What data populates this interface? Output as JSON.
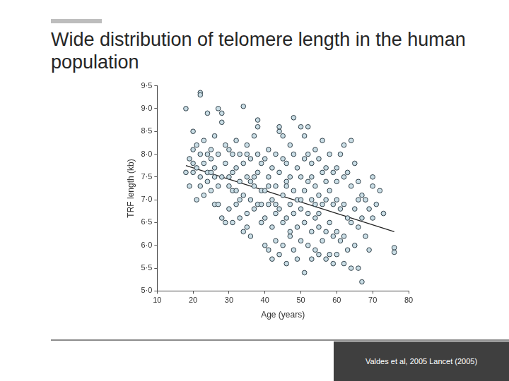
{
  "title": "Wide distribution of telomere length in the human population",
  "citation": "Valdes et al, 2005 Lancet  (2005)",
  "chart_data": {
    "type": "scatter",
    "x_label": "Age (years)",
    "y_label": "TRF length (kb)",
    "xlim": [
      10,
      80
    ],
    "xticks": [
      10,
      20,
      30,
      40,
      50,
      60,
      70,
      80
    ],
    "ylim": [
      5,
      9.5
    ],
    "yticks": [
      {
        "value": 5,
        "label": "5·0"
      },
      {
        "value": 5.5,
        "label": "5·5"
      },
      {
        "value": 6,
        "label": "6·0"
      },
      {
        "value": 6.5,
        "label": "6·5"
      },
      {
        "value": 7,
        "label": "7·0"
      },
      {
        "value": 7.5,
        "label": "7·5"
      },
      {
        "value": 8,
        "label": "8·0"
      },
      {
        "value": 8.5,
        "label": "8·5"
      },
      {
        "value": 9,
        "label": "9·0"
      },
      {
        "value": 9.5,
        "label": "9·5"
      }
    ],
    "grid": false,
    "series": [
      {
        "type": "scatter",
        "marker": "circle",
        "color": "#c9dde5",
        "x": [
          18,
          18,
          19,
          19,
          20,
          20,
          20,
          21,
          21,
          21,
          22,
          22,
          22,
          22,
          23,
          23,
          23,
          24,
          24,
          24,
          25,
          25,
          25,
          26,
          26,
          26,
          27,
          27,
          27,
          28,
          28,
          28,
          28,
          29,
          29,
          29,
          24,
          26,
          20,
          22,
          25,
          27,
          30,
          30,
          30,
          31,
          31,
          31,
          32,
          32,
          32,
          33,
          33,
          33,
          34,
          34,
          34,
          35,
          35,
          35,
          35,
          36,
          36,
          36,
          37,
          37,
          37,
          38,
          38,
          38,
          39,
          39,
          39,
          31,
          33,
          35,
          37,
          39,
          30,
          32,
          34,
          36,
          38,
          38,
          40,
          40,
          40,
          40,
          41,
          41,
          41,
          41,
          42,
          42,
          42,
          42,
          43,
          43,
          43,
          43,
          44,
          44,
          44,
          44,
          45,
          45,
          45,
          45,
          46,
          46,
          46,
          46,
          47,
          47,
          47,
          47,
          48,
          48,
          48,
          48,
          49,
          49,
          49,
          49,
          44,
          45,
          46,
          47,
          41,
          43,
          50,
          50,
          50,
          50,
          51,
          51,
          51,
          51,
          52,
          52,
          52,
          52,
          53,
          53,
          53,
          53,
          54,
          54,
          54,
          54,
          55,
          55,
          55,
          55,
          56,
          56,
          56,
          56,
          57,
          57,
          57,
          57,
          58,
          58,
          58,
          58,
          59,
          59,
          59,
          59,
          51,
          50,
          53,
          55,
          52,
          57,
          48,
          54,
          60,
          60,
          60,
          60,
          61,
          61,
          61,
          62,
          62,
          62,
          62,
          63,
          63,
          63,
          64,
          64,
          64,
          65,
          65,
          65,
          66,
          66,
          66,
          67,
          67,
          67,
          68,
          68,
          69,
          69,
          70,
          70,
          70,
          71,
          72,
          73,
          76,
          76,
          64,
          66,
          62,
          60
        ],
        "values": [
          9.0,
          7.6,
          7.9,
          7.3,
          8.5,
          7.6,
          8.1,
          7.0,
          7.7,
          8.2,
          9.35,
          9.3,
          7.5,
          8.0,
          7.8,
          7.1,
          8.3,
          8.9,
          7.6,
          7.4,
          8.1,
          7.2,
          7.9,
          7.7,
          8.4,
          6.9,
          9.0,
          7.3,
          8.0,
          8.9,
          8.7,
          6.6,
          7.5,
          6.5,
          7.8,
          8.2,
          8.0,
          7.5,
          7.8,
          7.3,
          7.6,
          6.9,
          7.5,
          6.8,
          8.1,
          8.0,
          7.2,
          6.5,
          7.7,
          6.9,
          8.3,
          7.4,
          6.6,
          8.0,
          9.05,
          7.1,
          7.8,
          8.2,
          6.7,
          7.5,
          6.4,
          7.9,
          7.0,
          6.2,
          8.4,
          7.3,
          6.8,
          7.6,
          6.9,
          8.0,
          7.2,
          6.5,
          7.8,
          7.6,
          7.0,
          8.0,
          7.5,
          6.9,
          7.3,
          7.2,
          6.3,
          7.4,
          8.75,
          8.6,
          7.9,
          7.2,
          6.6,
          6.0,
          8.1,
          7.5,
          6.9,
          5.9,
          7.7,
          7.0,
          6.4,
          5.7,
          8.0,
          7.3,
          6.7,
          6.1,
          8.5,
          7.6,
          6.8,
          5.8,
          8.4,
          7.1,
          6.5,
          6.0,
          7.8,
          7.3,
          6.6,
          5.6,
          8.2,
          7.5,
          6.9,
          6.2,
          8.0,
          7.2,
          6.7,
          5.9,
          7.7,
          7.0,
          6.4,
          5.7,
          8.6,
          7.9,
          7.4,
          6.3,
          7.3,
          6.9,
          8.6,
          7.5,
          6.8,
          6.1,
          8.4,
          7.2,
          6.5,
          5.4,
          8.0,
          7.4,
          6.7,
          6.0,
          7.8,
          7.0,
          6.3,
          5.7,
          8.1,
          7.3,
          6.6,
          5.9,
          7.9,
          7.1,
          6.4,
          5.8,
          8.3,
          7.6,
          6.9,
          6.1,
          7.7,
          7.0,
          6.3,
          5.7,
          8.0,
          7.2,
          6.5,
          5.8,
          7.6,
          6.9,
          6.2,
          5.6,
          7.9,
          7.0,
          7.5,
          6.7,
          8.6,
          7.4,
          8.8,
          6.9,
          7.7,
          7.0,
          6.3,
          5.8,
          8.0,
          6.8,
          6.1,
          7.5,
          6.9,
          6.2,
          5.6,
          7.6,
          6.6,
          5.9,
          7.3,
          6.5,
          5.5,
          7.8,
          6.8,
          6.0,
          7.4,
          6.4,
          5.5,
          7.1,
          6.6,
          5.2,
          7.0,
          6.2,
          6.8,
          5.9,
          7.5,
          7.3,
          6.6,
          6.9,
          7.2,
          6.7,
          5.95,
          5.85,
          8.3,
          7.0,
          8.2,
          7.4
        ]
      },
      {
        "type": "line",
        "color": "#222222",
        "line_style": "solid",
        "x": [
          18,
          76
        ],
        "values": [
          7.75,
          6.3
        ]
      }
    ]
  }
}
